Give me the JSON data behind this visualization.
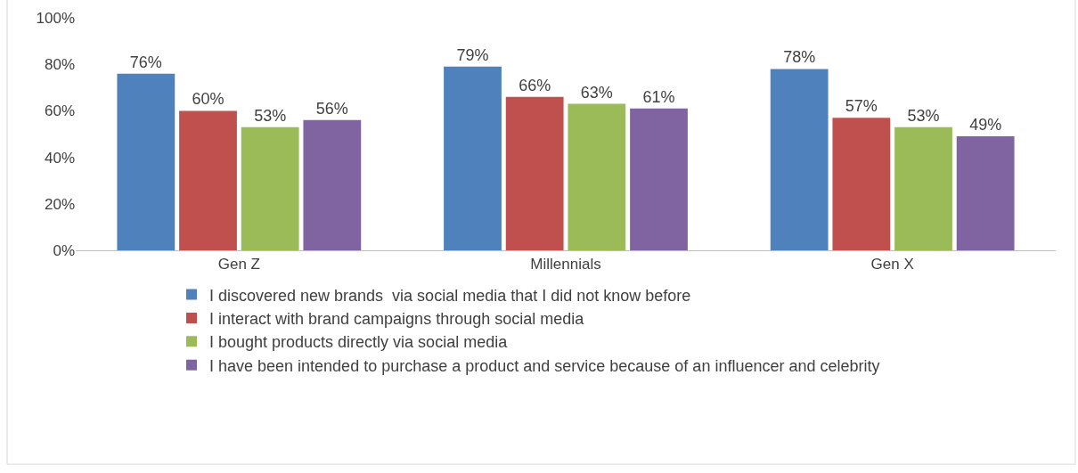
{
  "chart_data": {
    "type": "bar",
    "categories": [
      "Gen Z",
      "Millennials",
      "Gen X"
    ],
    "series": [
      {
        "name": "I discovered new brands  via social media that I did not know before",
        "color": "#4f81bd",
        "values": [
          76,
          79,
          78
        ]
      },
      {
        "name": "I interact with brand campaigns through social media",
        "color": "#c0504d",
        "values": [
          60,
          66,
          57
        ]
      },
      {
        "name": "I bought products directly via social media",
        "color": "#9bbb59",
        "values": [
          53,
          63,
          53
        ]
      },
      {
        "name": "I have been intended to purchase a product and service because of an influencer and celebrity",
        "color": "#8064a2",
        "values": [
          56,
          61,
          49
        ]
      }
    ],
    "ylim": [
      0,
      100
    ],
    "yticks": [
      {
        "value": 0,
        "label": "0%"
      },
      {
        "value": 20,
        "label": "20%"
      },
      {
        "value": 40,
        "label": "40%"
      },
      {
        "value": 60,
        "label": "60%"
      },
      {
        "value": 80,
        "label": "80%"
      },
      {
        "value": 100,
        "label": "100%"
      }
    ],
    "value_labels": [
      [
        "76%",
        "79%",
        "78%"
      ],
      [
        "60%",
        "66%",
        "57%"
      ],
      [
        "53%",
        "63%",
        "53%"
      ],
      [
        "56%",
        "61%",
        "49%"
      ]
    ],
    "grid": false,
    "legend": "bottom"
  }
}
